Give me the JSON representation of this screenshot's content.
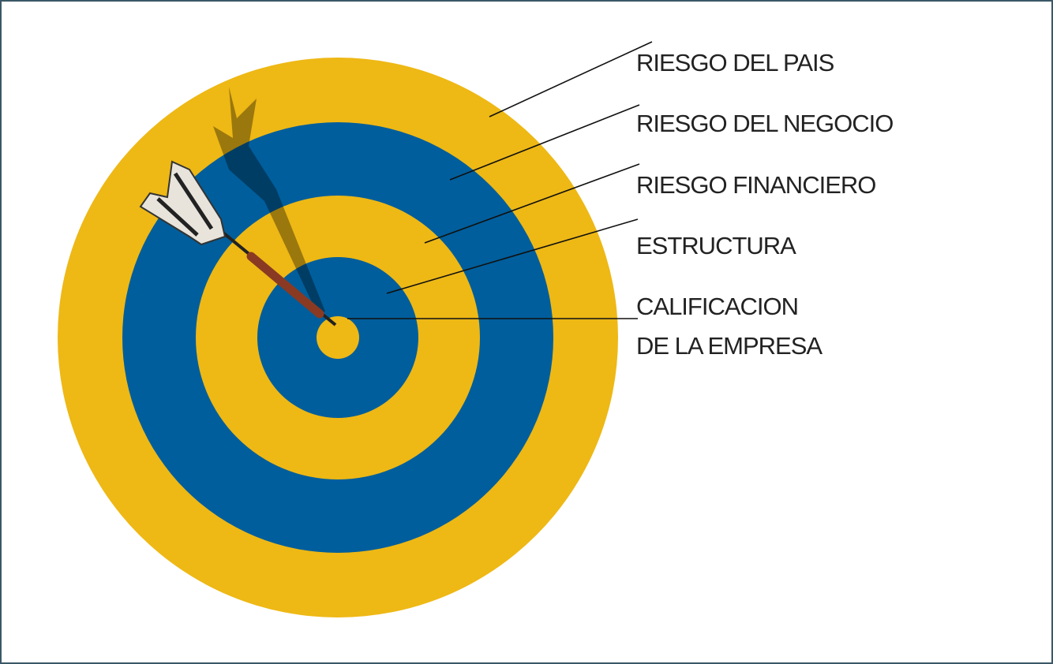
{
  "labels": [
    {
      "text": "RIESGO DEL PAIS"
    },
    {
      "text": "RIESGO DEL NEGOCIO"
    },
    {
      "text": "RIESGO FINANCIERO"
    },
    {
      "text": "ESTRUCTURA"
    },
    {
      "lines": [
        "CALIFICACION",
        "DE LA EMPRESA"
      ]
    }
  ]
}
